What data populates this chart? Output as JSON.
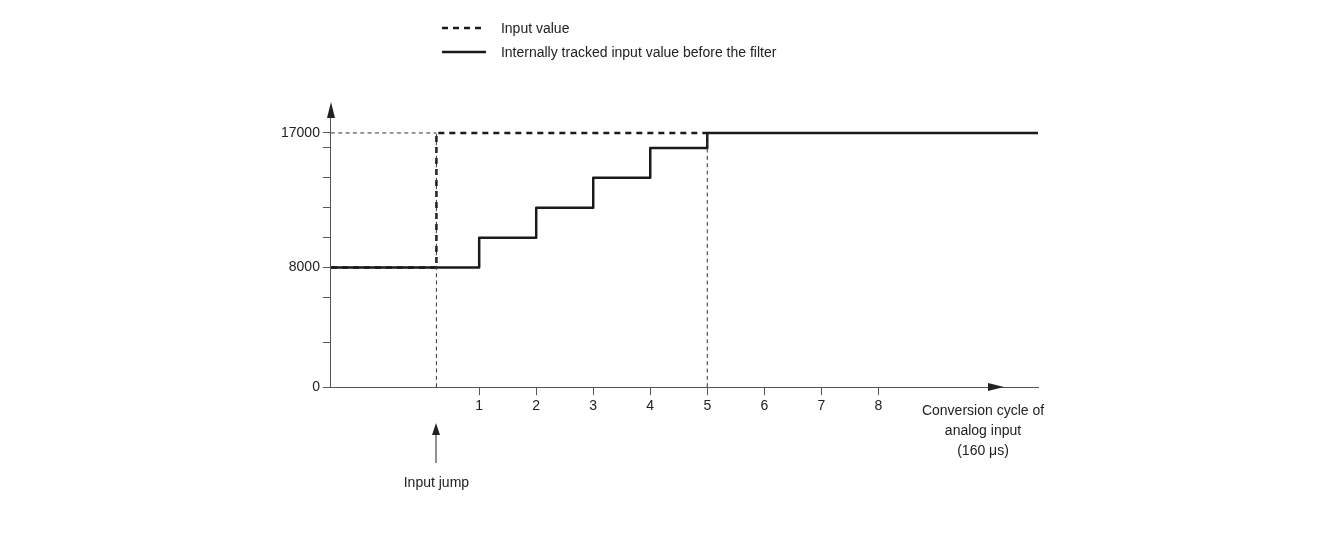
{
  "chart_data": {
    "type": "step",
    "xlabel": "Conversion cycle of analog input (160 μs)",
    "xlim": [
      -1.6,
      10.8
    ],
    "xticks": [
      1,
      2,
      3,
      4,
      5,
      6,
      7,
      8
    ],
    "ylim": [
      0,
      18000
    ],
    "yticks": [
      0,
      {
        "value": 3000,
        "label": null
      },
      {
        "value": 6000,
        "label": null
      },
      8000,
      {
        "value": 10000,
        "label": null
      },
      {
        "value": 12000,
        "label": null
      },
      {
        "value": 14000,
        "label": null
      },
      {
        "value": 16000,
        "label": null
      },
      17000
    ],
    "legend": "top",
    "marker": "none",
    "series": [
      {
        "name": "Input value",
        "color": "#1a1a1a",
        "line_style": "dashed",
        "x": [
          -1.6,
          0.25,
          5
        ],
        "values": [
          8000,
          17000,
          17000
        ]
      },
      {
        "name": "Internally tracked input value before the filter",
        "color": "#1a1a1a",
        "line_style": "solid",
        "x": [
          -1.6,
          1,
          2,
          3,
          4,
          5,
          10.8
        ],
        "values": [
          8000,
          10000,
          12000,
          14000,
          16000,
          17000,
          17000
        ]
      }
    ],
    "ref_lines": [
      {
        "axis": "x",
        "value": 0.25,
        "label": null,
        "line_style": "dashed"
      },
      {
        "axis": "x",
        "value": 5,
        "label": null,
        "line_style": "dashed"
      },
      {
        "axis": "y",
        "value": 17000,
        "label": null,
        "line_style": "dashed"
      }
    ],
    "annotations": [
      "Input jump"
    ]
  }
}
